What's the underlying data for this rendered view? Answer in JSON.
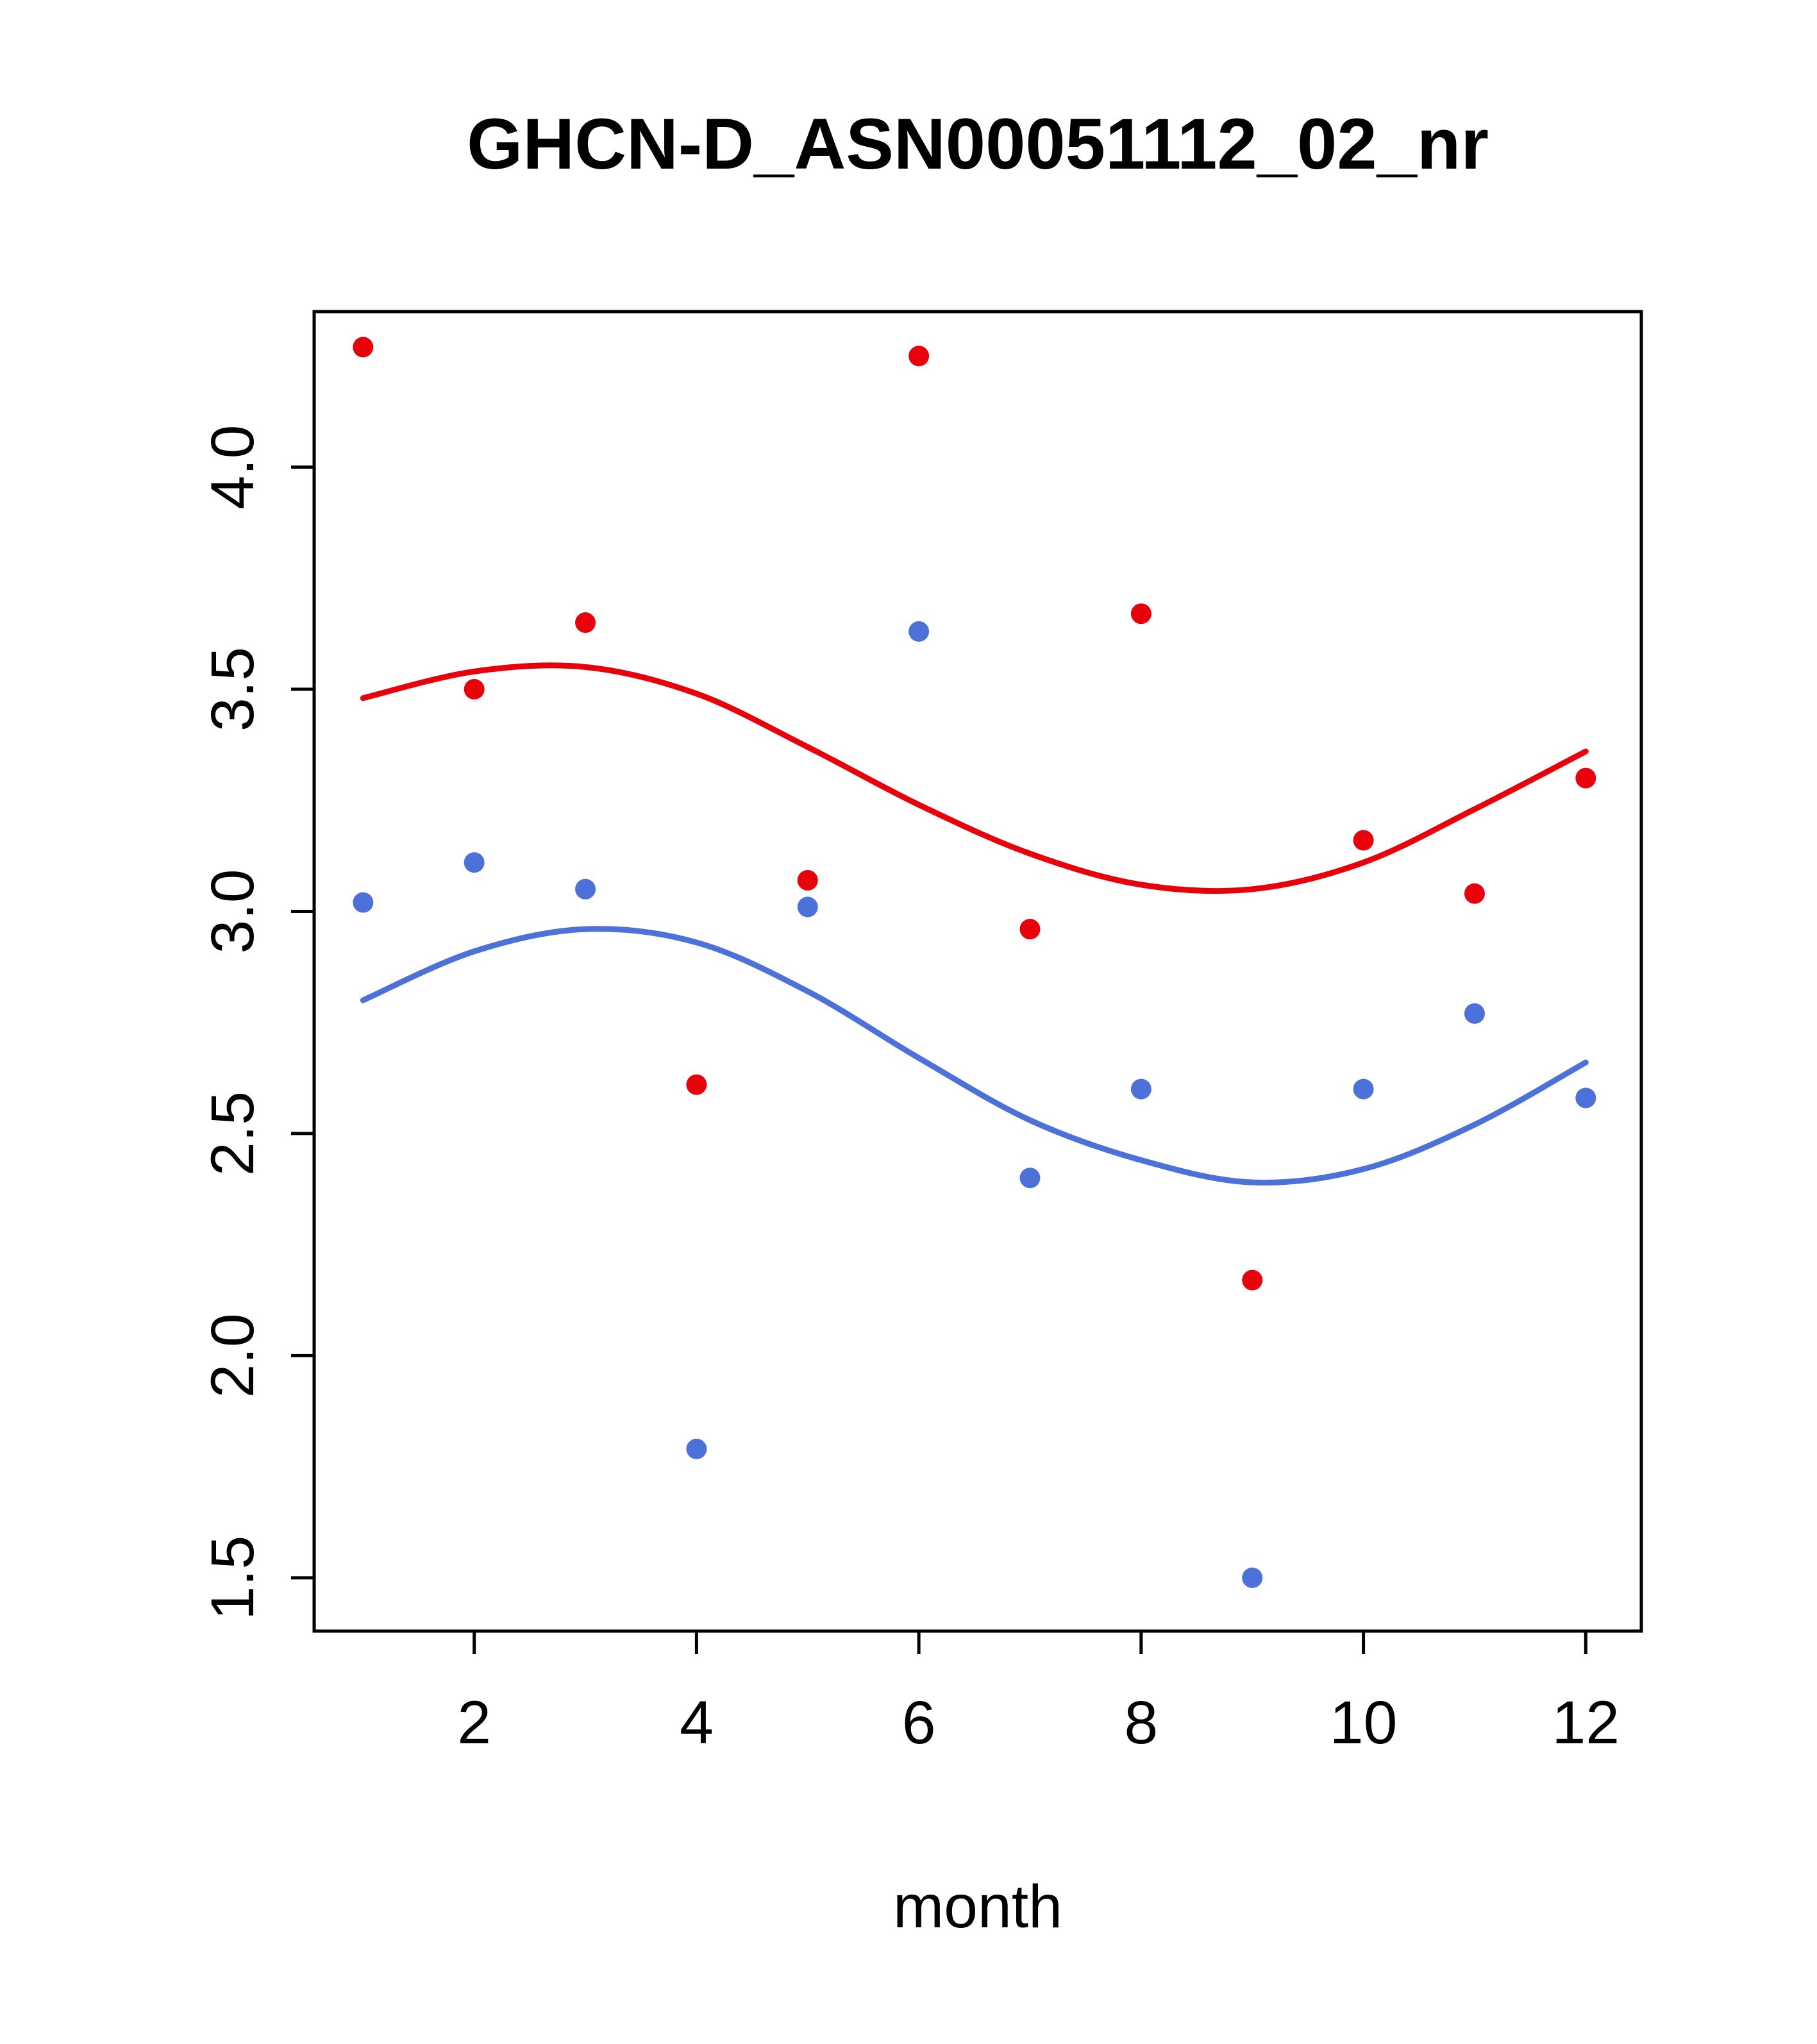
{
  "chart_data": {
    "type": "scatter",
    "title": "GHCN-D_ASN00051112_02_nr",
    "xlabel": "month",
    "ylabel": "",
    "xticks": [
      2,
      4,
      6,
      8,
      10,
      12
    ],
    "yticks": [
      "1.5",
      "2.0",
      "2.5",
      "3.0",
      "3.5",
      "4.0"
    ],
    "xlim": [
      0.56,
      12.5
    ],
    "ylim": [
      1.38,
      4.35
    ],
    "grid": false,
    "legend": "none",
    "colors": {
      "red": "#e8000b",
      "blue": "#4c72d9",
      "axis": "#000000"
    },
    "months": [
      1,
      2,
      3,
      4,
      5,
      6,
      7,
      8,
      9,
      10,
      11,
      12
    ],
    "series": [
      {
        "name": "red-points",
        "kind": "points",
        "color": "#e8000b",
        "values": [
          4.27,
          3.5,
          3.65,
          2.61,
          3.07,
          4.25,
          2.96,
          3.67,
          2.17,
          3.16,
          3.04,
          3.3
        ]
      },
      {
        "name": "blue-points",
        "kind": "points",
        "color": "#4c72d9",
        "values": [
          3.02,
          3.11,
          3.05,
          1.79,
          3.01,
          3.63,
          2.4,
          2.6,
          1.5,
          2.6,
          2.77,
          2.58
        ]
      },
      {
        "name": "red-smooth-line",
        "kind": "line",
        "color": "#e8000b",
        "values": [
          3.48,
          3.54,
          3.55,
          3.49,
          3.37,
          3.24,
          3.13,
          3.06,
          3.05,
          3.11,
          3.23,
          3.36
        ]
      },
      {
        "name": "blue-smooth-line",
        "kind": "line",
        "color": "#4c72d9",
        "values": [
          2.8,
          2.91,
          2.96,
          2.93,
          2.82,
          2.67,
          2.53,
          2.44,
          2.39,
          2.42,
          2.52,
          2.66
        ]
      }
    ]
  }
}
